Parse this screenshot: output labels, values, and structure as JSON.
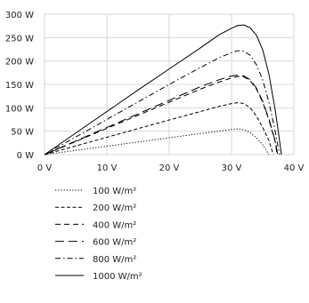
{
  "chart_data": {
    "type": "line",
    "xlim": [
      0,
      40
    ],
    "ylim": [
      0,
      300
    ],
    "x_ticks": [
      "0 V",
      "10 V",
      "20 V",
      "30 V",
      "40 V"
    ],
    "y_ticks": [
      "0 W",
      "50 W",
      "100 W",
      "150 W",
      "200 W",
      "250 W",
      "300 W"
    ],
    "grid": true,
    "legend_position": "bottom-left",
    "line_color": "#000000",
    "grid_color": "#d9d9d9",
    "series": [
      {
        "name": "100 W/m²",
        "dash": "dotted",
        "points": [
          [
            0,
            0
          ],
          [
            5,
            9
          ],
          [
            10,
            18
          ],
          [
            15,
            27
          ],
          [
            20,
            36
          ],
          [
            25,
            45
          ],
          [
            28,
            50
          ],
          [
            30,
            54
          ],
          [
            31,
            55
          ],
          [
            32,
            53
          ],
          [
            33,
            47
          ],
          [
            34,
            36
          ],
          [
            35,
            21
          ],
          [
            35.5,
            11
          ],
          [
            36,
            0
          ]
        ]
      },
      {
        "name": "200 W/m²",
        "dash": "short-dash",
        "points": [
          [
            0,
            0
          ],
          [
            5,
            18.5
          ],
          [
            10,
            37
          ],
          [
            15,
            55.5
          ],
          [
            20,
            74
          ],
          [
            25,
            92
          ],
          [
            28,
            103
          ],
          [
            30,
            109
          ],
          [
            31,
            111
          ],
          [
            32,
            109
          ],
          [
            33,
            100
          ],
          [
            34,
            82
          ],
          [
            35,
            58
          ],
          [
            36,
            30
          ],
          [
            36.7,
            0
          ]
        ]
      },
      {
        "name": "400 W/m²",
        "dash": "dash",
        "points": [
          [
            0,
            0
          ],
          [
            5,
            28
          ],
          [
            10,
            56
          ],
          [
            15,
            84
          ],
          [
            20,
            112
          ],
          [
            25,
            140
          ],
          [
            28,
            155
          ],
          [
            30,
            164
          ],
          [
            31,
            167
          ],
          [
            32,
            166
          ],
          [
            33,
            158
          ],
          [
            34,
            140
          ],
          [
            35,
            112
          ],
          [
            36,
            74
          ],
          [
            37,
            28
          ],
          [
            37.3,
            0
          ]
        ]
      },
      {
        "name": "600 W/m²",
        "dash": "long-dash",
        "points": [
          [
            0,
            0
          ],
          [
            5,
            29
          ],
          [
            10,
            58
          ],
          [
            15,
            87
          ],
          [
            20,
            116
          ],
          [
            25,
            145
          ],
          [
            28,
            160
          ],
          [
            30,
            168
          ],
          [
            31,
            170
          ],
          [
            32,
            168
          ],
          [
            33,
            160
          ],
          [
            34,
            142
          ],
          [
            35,
            114
          ],
          [
            36,
            76
          ],
          [
            37,
            30
          ],
          [
            37.4,
            0
          ]
        ]
      },
      {
        "name": "800 W/m²",
        "dash": "dash-dot",
        "points": [
          [
            0,
            0
          ],
          [
            5,
            37.5
          ],
          [
            10,
            75
          ],
          [
            15,
            112.5
          ],
          [
            20,
            150
          ],
          [
            25,
            186
          ],
          [
            28,
            207
          ],
          [
            30,
            218
          ],
          [
            31,
            222
          ],
          [
            32,
            221
          ],
          [
            33,
            212
          ],
          [
            34,
            192
          ],
          [
            35,
            160
          ],
          [
            36,
            112
          ],
          [
            37,
            50
          ],
          [
            37.7,
            0
          ]
        ]
      },
      {
        "name": "1000 W/m²",
        "dash": "solid",
        "points": [
          [
            0,
            0
          ],
          [
            5,
            46
          ],
          [
            10,
            92
          ],
          [
            15,
            138
          ],
          [
            20,
            183
          ],
          [
            25,
            228
          ],
          [
            28,
            256
          ],
          [
            30,
            270
          ],
          [
            31,
            276
          ],
          [
            32,
            277
          ],
          [
            33,
            271
          ],
          [
            34,
            255
          ],
          [
            35,
            224
          ],
          [
            36,
            172
          ],
          [
            37,
            96
          ],
          [
            37.5,
            50
          ],
          [
            38,
            0
          ]
        ]
      }
    ]
  }
}
